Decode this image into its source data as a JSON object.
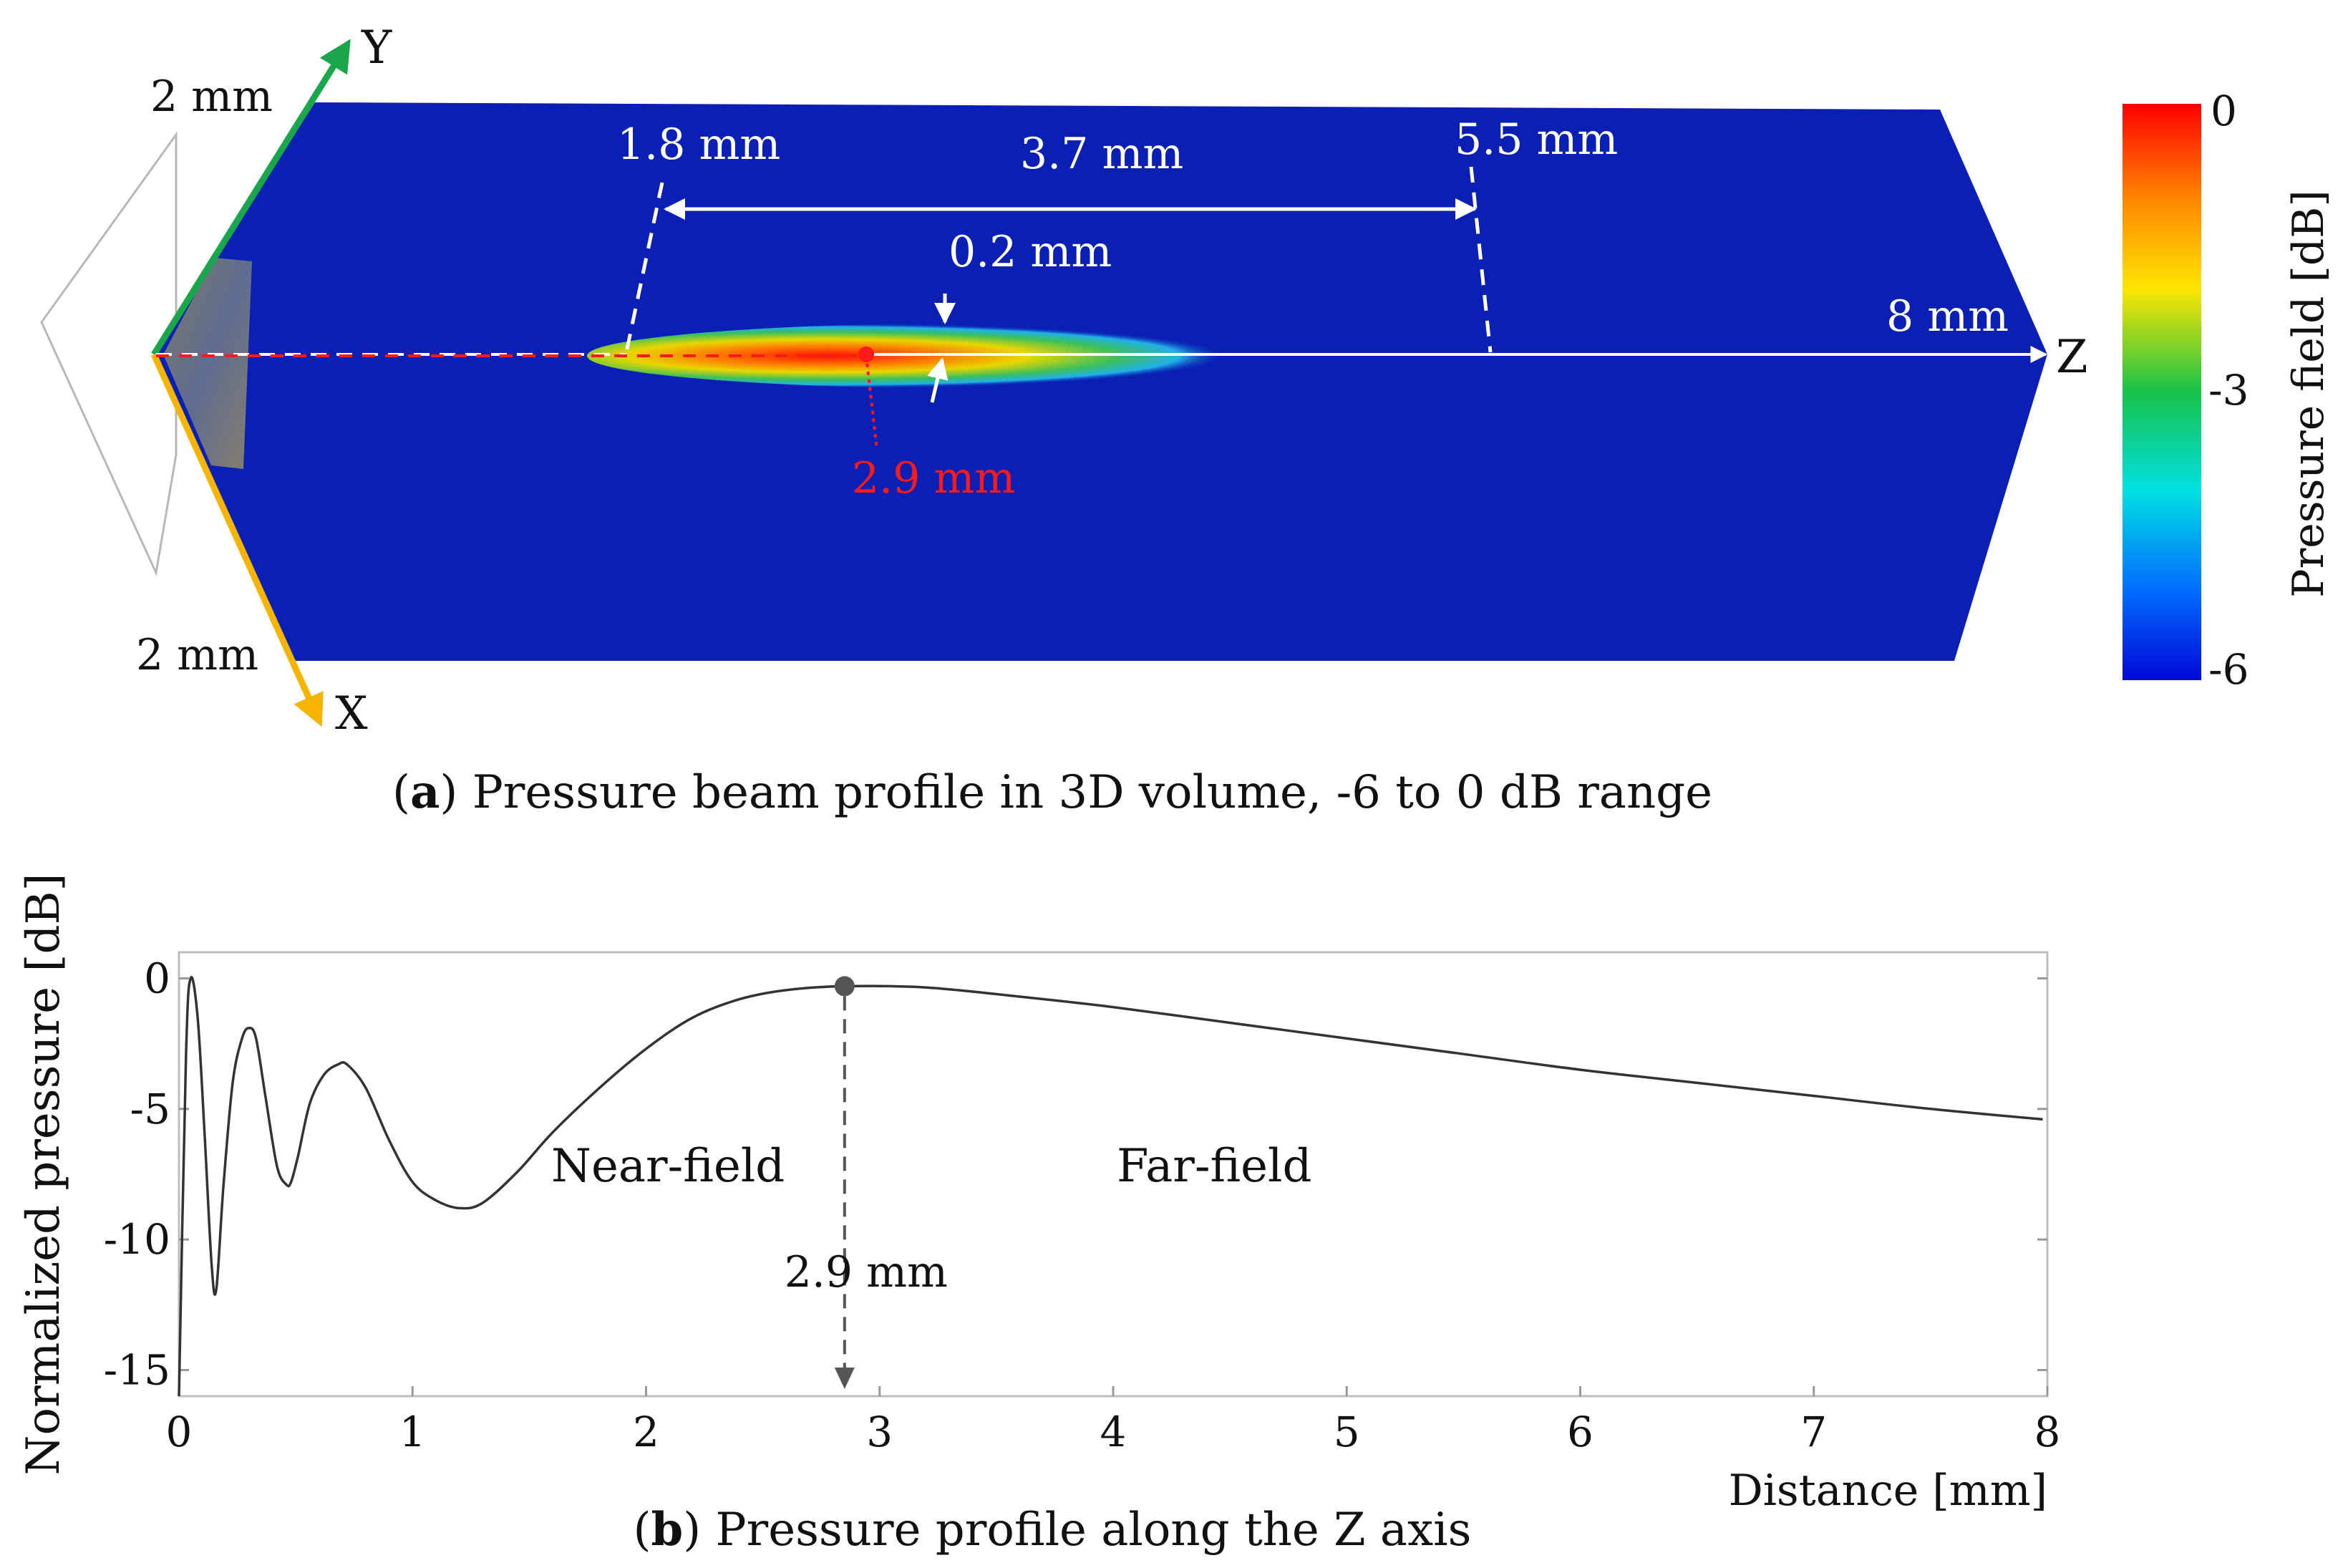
{
  "panel_a": {
    "caption_letter": "a",
    "caption_text": ") Pressure beam profile in 3D volume, -6 to 0 dB range",
    "axis_y_label": "Y",
    "axis_x_label": "X",
    "axis_z_label": "Z",
    "y_extent_label": "2 mm",
    "x_extent_label": "2 mm",
    "z_extent_label": "8 mm",
    "near_boundary_label": "1.8 mm",
    "far_boundary_label": "5.5 mm",
    "focal_length_label": "3.7 mm",
    "beam_width_label": "0.2 mm",
    "focus_label": "2.9 mm",
    "colorbar": {
      "title": "Pressure field [dB]",
      "ticks": [
        "0",
        "-3",
        "-6"
      ]
    },
    "colors": {
      "volume": "#0a1fb4",
      "y_axis": "#1aa64a",
      "x_axis": "#f5b400",
      "focus": "#ff1a1a",
      "annotation": "#ffffff"
    }
  },
  "panel_b": {
    "caption_letter": "b",
    "caption_text": ") Pressure profile along the Z axis",
    "near_field_label": "Near-field",
    "far_field_label": "Far-field",
    "focus_label": "2.9 mm"
  },
  "chart_data": {
    "type": "line",
    "title": "Pressure profile along the Z axis",
    "xlabel": "Distance [mm]",
    "ylabel": "Normalized pressure [dB]",
    "xlim": [
      0,
      8
    ],
    "ylim": [
      -16,
      1
    ],
    "xticks": [
      0,
      1,
      2,
      3,
      4,
      5,
      6,
      7,
      8
    ],
    "yticks": [
      0,
      -5,
      -10,
      -15
    ],
    "grid": false,
    "focus_marker": {
      "x": 2.85,
      "y": -0.3
    },
    "series": [
      {
        "name": "Normalized pressure",
        "x": [
          0.0,
          0.03,
          0.05,
          0.08,
          0.11,
          0.14,
          0.16,
          0.19,
          0.23,
          0.27,
          0.3,
          0.33,
          0.37,
          0.42,
          0.46,
          0.48,
          0.51,
          0.56,
          0.62,
          0.68,
          0.72,
          0.8,
          0.9,
          1.0,
          1.1,
          1.2,
          1.3,
          1.45,
          1.6,
          1.8,
          2.0,
          2.2,
          2.4,
          2.6,
          2.85,
          3.2,
          3.6,
          4.0,
          4.5,
          5.0,
          5.5,
          6.0,
          6.5,
          7.0,
          7.5,
          7.98
        ],
        "values": [
          -16,
          -3,
          0,
          -1.5,
          -6,
          -11,
          -11.9,
          -8,
          -4,
          -2.3,
          -1.9,
          -2.3,
          -4.5,
          -7.2,
          -7.9,
          -7.8,
          -6.8,
          -4.8,
          -3.7,
          -3.3,
          -3.3,
          -4.2,
          -6.2,
          -7.8,
          -8.5,
          -8.8,
          -8.6,
          -7.4,
          -5.9,
          -4.2,
          -2.7,
          -1.5,
          -0.8,
          -0.45,
          -0.3,
          -0.35,
          -0.7,
          -1.1,
          -1.7,
          -2.3,
          -2.9,
          -3.5,
          -4.0,
          -4.5,
          -5.0,
          -5.4
        ]
      }
    ]
  }
}
